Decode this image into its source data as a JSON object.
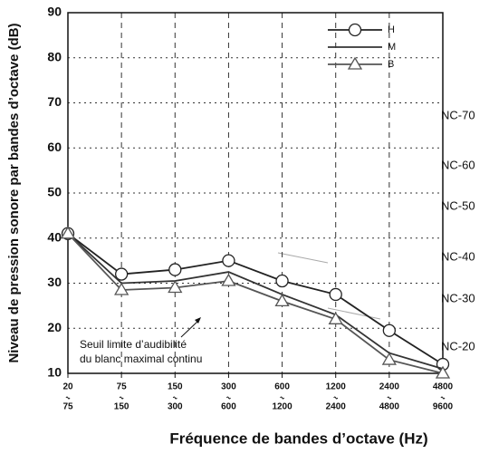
{
  "chart_data": {
    "type": "line",
    "x_label": "Fréquence de bandes d’octave (Hz)",
    "y_label": "Niveau de pression sonore par bandes d’octave (dB)",
    "categories": [
      [
        "20",
        "75"
      ],
      [
        "75",
        "150"
      ],
      [
        "150",
        "300"
      ],
      [
        "300",
        "600"
      ],
      [
        "600",
        "1200"
      ],
      [
        "1200",
        "2400"
      ],
      [
        "2400",
        "4800"
      ],
      [
        "4800",
        "9600"
      ]
    ],
    "series": [
      {
        "name": "H",
        "color": "#222222",
        "marker": "circle",
        "values": [
          41,
          32,
          33,
          35,
          30.5,
          27.5,
          19.5,
          12
        ]
      },
      {
        "name": "M",
        "color": "#333333",
        "marker": "none",
        "values": [
          41,
          30,
          30.5,
          32.5,
          27.5,
          23,
          14.5,
          11
        ]
      },
      {
        "name": "B",
        "color": "#555555",
        "marker": "triangle",
        "values": [
          41,
          28.5,
          29,
          30.5,
          26,
          22,
          13,
          10
        ]
      }
    ],
    "ylim": [
      10,
      90
    ],
    "yticks": [
      10,
      20,
      30,
      40,
      50,
      60,
      70,
      80,
      90
    ],
    "grid": true,
    "nc_labels": [
      "NC-70",
      "NC-60",
      "NC-50",
      "NC-40",
      "NC-30",
      "NC-20"
    ],
    "annotation": [
      "Seuil limite d’audibilité",
      "du blanc maximal continu"
    ]
  }
}
